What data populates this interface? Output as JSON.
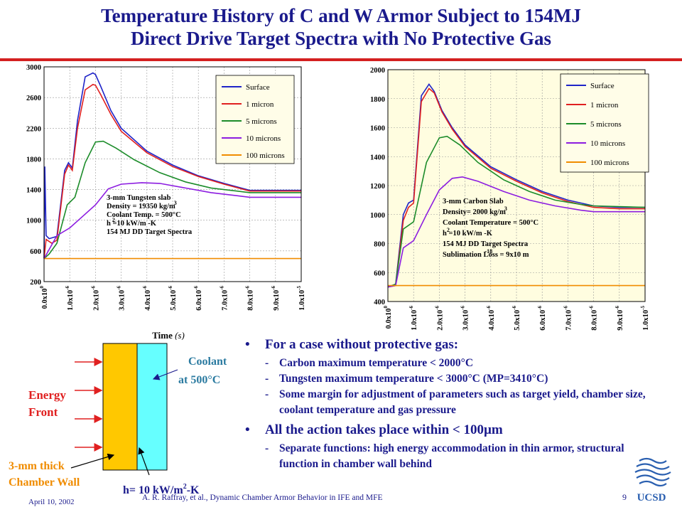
{
  "title_line1": "Temperature History of C and W Armor Subject to 154MJ",
  "title_line2": "Direct Drive Target Spectra with No Protective Gas",
  "colors": {
    "title": "#1a1a8c",
    "rule": "#d42020",
    "legend_box": "#fffde8",
    "surface": "#1f24c8",
    "one_micron": "#e02020",
    "five_microns": "#1c8c2a",
    "ten_microns": "#8c1ce0",
    "hundred_microns": "#f08c00",
    "armor": "#ffc800",
    "coolant": "#66ffff",
    "arrow": "#e02020"
  },
  "chart_data": [
    {
      "type": "line",
      "xlabel": "Time",
      "xunit": "(s)",
      "xlim": [
        0,
        1e-05
      ],
      "ylim": [
        200,
        3000
      ],
      "yticks": [
        200,
        600,
        1000,
        1400,
        1800,
        2200,
        2600,
        3000
      ],
      "xticks": [
        "0.0x10",
        "1.0x10",
        "2.0x10",
        "3.0x10",
        "4.0x10",
        "5.0x10",
        "6.0x10",
        "7.0x10",
        "8.0x10",
        "9.0x10",
        "1.0x10"
      ],
      "xtick_exps": [
        "0",
        "-6",
        "-6",
        "-6",
        "-6",
        "-6",
        "-6",
        "-6",
        "-6",
        "-6",
        "-5"
      ],
      "grid": true,
      "legend_position": "top-right",
      "annotation": [
        "3-mm Tungsten slab",
        "Density = 19350 kg/m",
        "Coolant Temp. = 500°C",
        "h =10 kW/m -K",
        "154 MJ DD Target Spectra"
      ],
      "annotation_sup": [
        "",
        "3",
        "",
        "2",
        ""
      ],
      "series": [
        {
          "name": "Surface",
          "x": [
            0,
            3e-08,
            8e-08,
            2e-07,
            5e-07,
            8e-07,
            9.5e-07,
            1.1e-06,
            1.3e-06,
            1.6e-06,
            1.9e-06,
            2e-06,
            2.2e-06,
            2.6e-06,
            3e-06,
            4e-06,
            5e-06,
            6e-06,
            7e-06,
            8e-06,
            1e-05
          ],
          "y": [
            500,
            1700,
            800,
            760,
            790,
            1650,
            1750,
            1680,
            2300,
            2870,
            2920,
            2900,
            2750,
            2430,
            2200,
            1900,
            1720,
            1580,
            1480,
            1390,
            1390
          ]
        },
        {
          "name": "1 micron",
          "x": [
            0,
            8e-08,
            3e-07,
            5e-07,
            8e-07,
            9.5e-07,
            1.1e-06,
            1.3e-06,
            1.6e-06,
            1.9e-06,
            2e-06,
            2.2e-06,
            2.6e-06,
            3e-06,
            4e-06,
            5e-06,
            6e-06,
            7e-06,
            8e-06,
            1e-05
          ],
          "y": [
            500,
            750,
            700,
            740,
            1600,
            1720,
            1650,
            2200,
            2700,
            2770,
            2760,
            2640,
            2380,
            2160,
            1880,
            1700,
            1570,
            1470,
            1380,
            1380
          ]
        },
        {
          "name": "5 microns",
          "x": [
            0,
            2e-07,
            5e-07,
            9e-07,
            1.2e-06,
            1.6e-06,
            2e-06,
            2.3e-06,
            2.8e-06,
            3.5e-06,
            4.5e-06,
            5.5e-06,
            6.5e-06,
            7.5e-06,
            8e-06,
            1e-05
          ],
          "y": [
            500,
            560,
            700,
            1200,
            1300,
            1750,
            2020,
            2030,
            1940,
            1790,
            1620,
            1500,
            1420,
            1380,
            1360,
            1360
          ]
        },
        {
          "name": "10 microns",
          "x": [
            0,
            5e-07,
            1e-06,
            1.5e-06,
            2e-06,
            2.5e-06,
            3e-06,
            3.8e-06,
            4.5e-06,
            5.5e-06,
            6.5e-06,
            7.5e-06,
            8e-06,
            1e-05
          ],
          "y": [
            500,
            800,
            900,
            1050,
            1200,
            1410,
            1470,
            1490,
            1480,
            1420,
            1360,
            1320,
            1300,
            1300
          ]
        },
        {
          "name": "100 microns",
          "x": [
            0,
            1e-05
          ],
          "y": [
            500,
            500
          ]
        }
      ]
    },
    {
      "type": "line",
      "xlabel": "Time",
      "xunit": "(s)",
      "xlim": [
        0,
        1e-05
      ],
      "ylim": [
        400,
        2000
      ],
      "yticks": [
        400,
        600,
        800,
        1000,
        1200,
        1400,
        1600,
        1800,
        2000
      ],
      "xticks": [
        "0.0x10",
        "1.0x10",
        "2.0x10",
        "3.0x10",
        "4.0x10",
        "5.0x10",
        "6.0x10",
        "7.0x10",
        "8.0x10",
        "9.0x10",
        "1.0x10"
      ],
      "xtick_exps": [
        "0",
        "-6",
        "-6",
        "-6",
        "-6",
        "-6",
        "-6",
        "-6",
        "-6",
        "-6",
        "-5"
      ],
      "grid": true,
      "legend_position": "top-right",
      "annotation": [
        "3-mm Carbon Slab",
        "Density= 2000 kg/m",
        "Coolant Temperature = 500°C",
        "h =10 kW/m -K",
        "154 MJ DD Target Spectra",
        "Sublimation Loss = 9x10    m"
      ],
      "annotation_sup": [
        "",
        "3",
        "",
        "2",
        "",
        "-18"
      ],
      "series": [
        {
          "name": "Surface",
          "x": [
            0,
            3e-07,
            6e-07,
            8e-07,
            1e-06,
            1.3e-06,
            1.6e-06,
            1.8e-06,
            2.1e-06,
            2.5e-06,
            3e-06,
            4e-06,
            5e-06,
            6e-06,
            7e-06,
            8e-06,
            9e-06,
            1e-05
          ],
          "y": [
            500,
            520,
            1000,
            1080,
            1100,
            1820,
            1900,
            1850,
            1720,
            1600,
            1480,
            1330,
            1240,
            1160,
            1100,
            1060,
            1050,
            1050
          ]
        },
        {
          "name": "1 micron",
          "x": [
            0,
            3e-07,
            6e-07,
            8e-07,
            1e-06,
            1.3e-06,
            1.6e-06,
            1.8e-06,
            2.1e-06,
            2.5e-06,
            3e-06,
            4e-06,
            5e-06,
            6e-06,
            7e-06,
            8e-06,
            9e-06,
            1e-05
          ],
          "y": [
            500,
            510,
            960,
            1050,
            1080,
            1780,
            1870,
            1840,
            1710,
            1590,
            1470,
            1320,
            1230,
            1150,
            1090,
            1050,
            1040,
            1040
          ]
        },
        {
          "name": "5 microns",
          "x": [
            0,
            3e-07,
            6e-07,
            1e-06,
            1.5e-06,
            2e-06,
            2.3e-06,
            2.8e-06,
            3.5e-06,
            4.5e-06,
            5.5e-06,
            6.5e-06,
            7.5e-06,
            8e-06,
            1e-05
          ],
          "y": [
            500,
            520,
            900,
            950,
            1360,
            1530,
            1540,
            1480,
            1360,
            1240,
            1160,
            1100,
            1070,
            1060,
            1050
          ]
        },
        {
          "name": "10 microns",
          "x": [
            0,
            3e-07,
            6e-07,
            1e-06,
            1.5e-06,
            2e-06,
            2.5e-06,
            2.9e-06,
            3.5e-06,
            4.5e-06,
            5.5e-06,
            6.5e-06,
            7.5e-06,
            8e-06,
            1e-05
          ],
          "y": [
            500,
            510,
            770,
            820,
            1000,
            1170,
            1250,
            1260,
            1230,
            1160,
            1100,
            1060,
            1030,
            1020,
            1020
          ]
        },
        {
          "name": "100 microns",
          "x": [
            0,
            1e-05
          ],
          "y": [
            510,
            510
          ]
        }
      ]
    }
  ],
  "diagram": {
    "energy_label_line1": "Energy",
    "energy_label_line2": "Front",
    "coolant_label_line1": "Coolant",
    "coolant_label_line2": "at 500°C",
    "wall_label_line1": "3-mm thick",
    "wall_label_line2": "Chamber Wall",
    "h_label": "h= 10 kW/m",
    "h_label_sup": "2",
    "h_label_tail": "-K"
  },
  "bullets": [
    {
      "text": "For a case without protective gas:",
      "subs": [
        "Carbon maximum temperature < 2000°C",
        "Tungsten maximum temperature < 3000°C (MP=3410°C)",
        "Some margin for adjustment of parameters such as target yield, chamber size, coolant temperature and gas pressure"
      ]
    },
    {
      "text": "All the action takes place within < 100µm",
      "subs": [
        "Separate functions: high energy accommodation in thin armor, structural function in chamber wall behind"
      ]
    }
  ],
  "bullet_marks": {
    "main": "•",
    "sub": "-"
  },
  "footer": {
    "date": "April 10, 2002",
    "citation": "A. R. Raffray, et al., Dynamic Chamber Armor Behavior in IFE and MFE",
    "page": "9",
    "logo_text": "UCSD"
  }
}
